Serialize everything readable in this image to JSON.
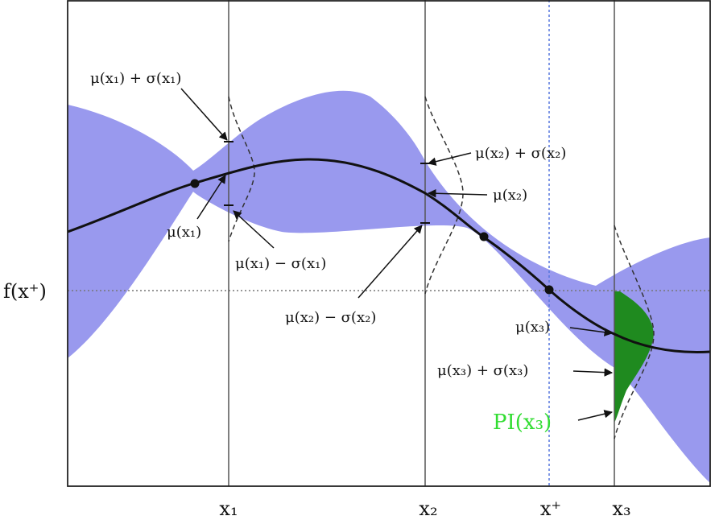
{
  "figure": {
    "y_reference_label": "f(x⁺)",
    "x_axis_labels": [
      "x₁",
      "x₂",
      "x⁺",
      "x₃"
    ],
    "annotations": {
      "mu_x1_plus_sigma": "μ(x₁) + σ(x₁)",
      "mu_x1": "μ(x₁)",
      "mu_x1_minus_sigma": "μ(x₁) − σ(x₁)",
      "mu_x2_plus_sigma": "μ(x₂) + σ(x₂)",
      "mu_x2": "μ(x₂)",
      "mu_x2_minus_sigma": "μ(x₂) − σ(x₂)",
      "mu_x3": "μ(x₃)",
      "mu_x3_plus_sigma": "μ(x₃) + σ(x₃)"
    },
    "pi_label": "PI(x₃)",
    "colors": {
      "confidence_band": "#9999ee",
      "mean_curve": "#111111",
      "pi_fill": "#1f8a1f",
      "pi_label": "#33dd33",
      "x_plus_line": "#5577dd",
      "reference_line": "#777777"
    }
  }
}
